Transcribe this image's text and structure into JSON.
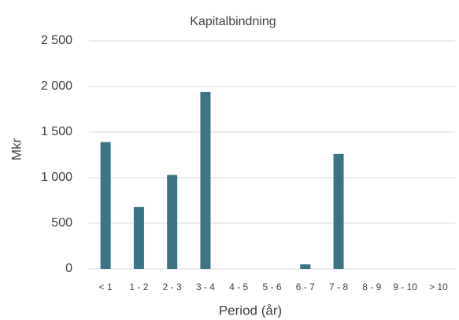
{
  "chart_data": {
    "type": "bar",
    "title": "Kapitalbindning",
    "y_label": "Mkr",
    "x_label": "Period (år)",
    "categories": [
      "< 1",
      "1 - 2",
      "2 - 3",
      "3 - 4",
      "4 - 5",
      "5 - 6",
      "6 - 7",
      "7 - 8",
      "8 - 9",
      "9 - 10",
      "> 10"
    ],
    "values": [
      1390,
      680,
      1030,
      1940,
      0,
      0,
      50,
      1260,
      0,
      0,
      0
    ],
    "color": "#3b7484",
    "ylim": [
      0,
      2500
    ],
    "yticks": [
      0,
      500,
      {
        "value": 1000,
        "label": "1 000"
      },
      {
        "value": 1500,
        "label": "1 500"
      },
      {
        "value": 2000,
        "label": "2 000"
      },
      {
        "value": 2500,
        "label": "2 500"
      }
    ],
    "grid": true
  }
}
